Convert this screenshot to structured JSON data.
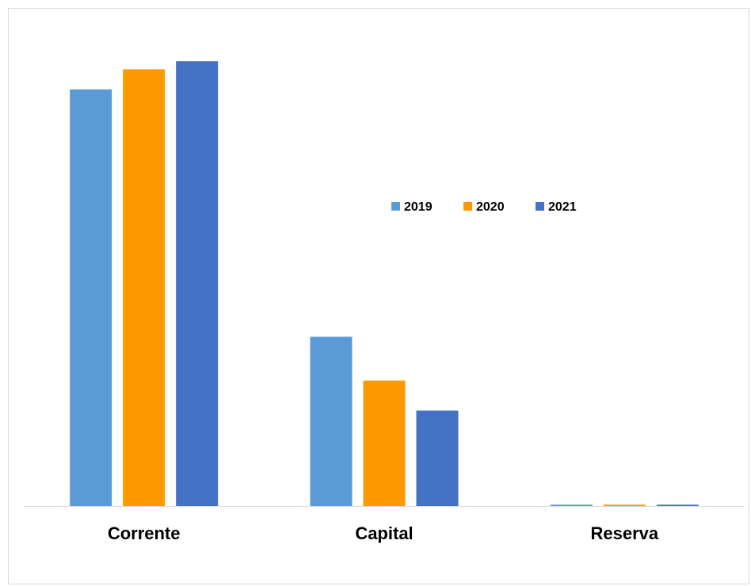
{
  "chart_data": {
    "type": "bar",
    "title": "",
    "xlabel": "",
    "ylabel": "",
    "categories": [
      "Corrente",
      "Capital",
      "Reserva"
    ],
    "series": [
      {
        "name": "2019",
        "color": "#5b9bd5",
        "values": [
          9.3,
          3.78,
          0.03
        ]
      },
      {
        "name": "2020",
        "color": "#ff9900",
        "values": [
          9.75,
          2.8,
          0.03
        ]
      },
      {
        "name": "2021",
        "color": "#4472c4",
        "values": [
          9.93,
          2.13,
          0.03
        ]
      }
    ],
    "ylim": [
      0,
      10.5
    ],
    "grid": false,
    "legend_position": "center-right"
  }
}
